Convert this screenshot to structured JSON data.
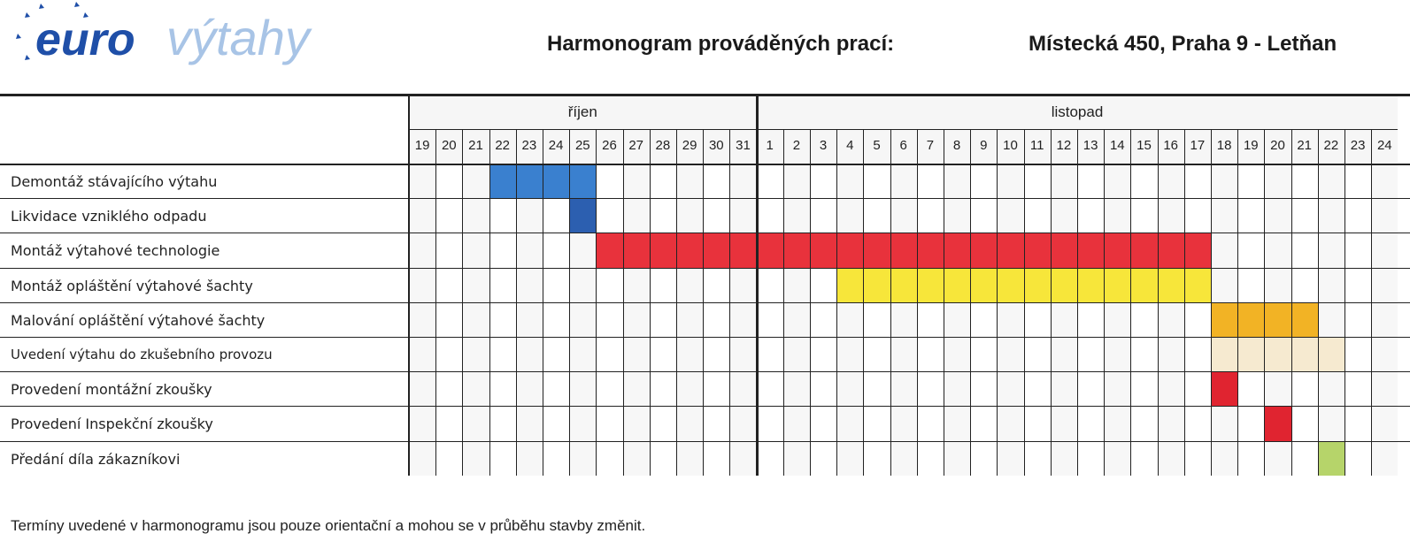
{
  "header": {
    "logo_euro": "euro",
    "logo_vytahy": "výtahy",
    "title": "Harmonogram prováděných prací:",
    "address": "Místecká 450, Praha 9 - Letňan"
  },
  "timeline": {
    "months": [
      {
        "label": "říjen",
        "days": [
          "19",
          "20",
          "21",
          "22",
          "23",
          "24",
          "25",
          "26",
          "27",
          "28",
          "29",
          "30",
          "31"
        ]
      },
      {
        "label": "listopad",
        "days": [
          "1",
          "2",
          "3",
          "4",
          "5",
          "6",
          "7",
          "8",
          "9",
          "10",
          "11",
          "12",
          "13",
          "14",
          "15",
          "16",
          "17",
          "18",
          "19",
          "20",
          "21",
          "22",
          "23",
          "24"
        ]
      }
    ]
  },
  "tasks": [
    {
      "label": "Demontáž stávajícího výtahu",
      "bars": [
        {
          "start": 3,
          "end": 6,
          "color": "#3a80cf"
        }
      ]
    },
    {
      "label": "Likvidace vzniklého odpadu",
      "bars": [
        {
          "start": 6,
          "end": 6,
          "color": "#2c5fb0"
        }
      ]
    },
    {
      "label": "Montáž výtahové technologie",
      "bars": [
        {
          "start": 7,
          "end": 29,
          "color": "#e8323c"
        }
      ]
    },
    {
      "label": "Montáž opláštění výtahové šachty",
      "bars": [
        {
          "start": 16,
          "end": 29,
          "color": "#f7e63a"
        }
      ]
    },
    {
      "label": "Malování opláštění výtahové šachty",
      "bars": [
        {
          "start": 30,
          "end": 33,
          "color": "#f2b325"
        }
      ]
    },
    {
      "label": "Uvedení výtahu do zkušebního provozu",
      "bars": [
        {
          "start": 30,
          "end": 34,
          "color": "#f6ead0"
        }
      ]
    },
    {
      "label": "Provedení montážní  zkoušky",
      "bars": [
        {
          "start": 30,
          "end": 30,
          "color": "#e02430"
        }
      ]
    },
    {
      "label": "Provedení Inspekční zkoušky",
      "bars": [
        {
          "start": 32,
          "end": 32,
          "color": "#e02430"
        }
      ]
    },
    {
      "label": "Předání díla zákazníkovi",
      "bars": [
        {
          "start": 34,
          "end": 34,
          "color": "#b6d46a"
        }
      ]
    }
  ],
  "footer": {
    "note": "Termíny uvedené v harmonogramu jsou pouze orientační a mohou se v průběhu stavby změnit."
  },
  "colors": {
    "logo_dark": "#1f4fa8",
    "logo_light": "#a8c4e6",
    "grid": "#222222"
  }
}
